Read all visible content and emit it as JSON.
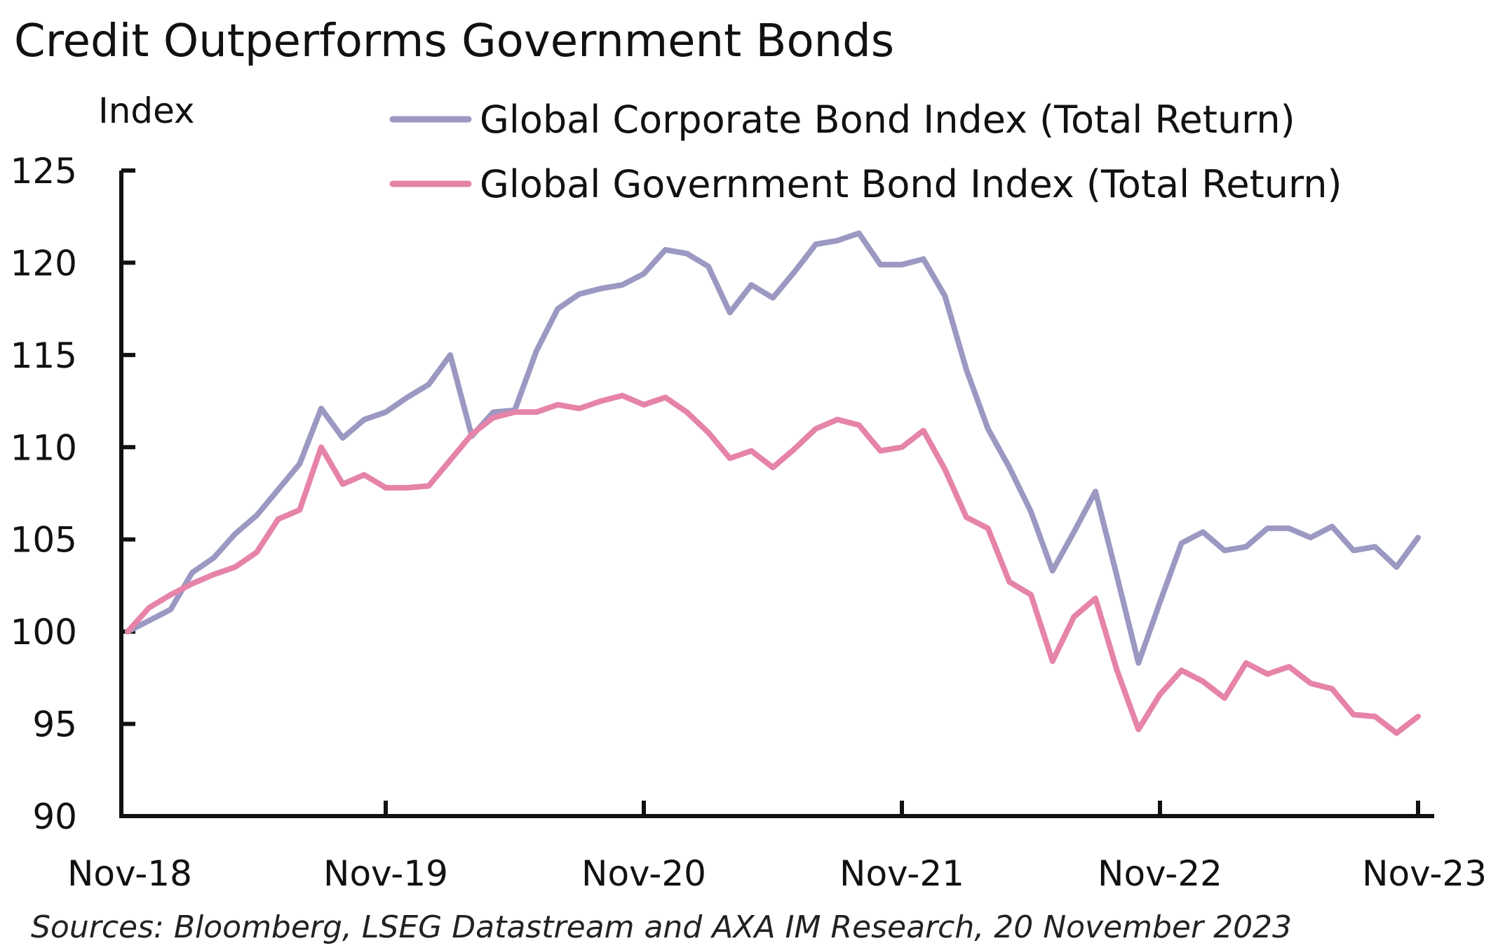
{
  "title": "Credit Outperforms Government Bonds",
  "source": "Sources: Bloomberg, LSEG Datastream and AXA IM Research, 20 November 2023",
  "chart_data": {
    "type": "line",
    "title": "Credit Outperforms Government Bonds",
    "ylabel": "Index",
    "xlabel": "",
    "ylim": [
      90,
      125
    ],
    "yticks": [
      90,
      95,
      100,
      105,
      110,
      115,
      120,
      125
    ],
    "xtick_labels": [
      "Nov-18",
      "Nov-19",
      "Nov-20",
      "Nov-21",
      "Nov-22",
      "Nov-23"
    ],
    "x_start": "Nov-18",
    "x_frequency": "monthly",
    "grid": false,
    "legend_position": "top",
    "series": [
      {
        "name": "Global Corporate Bond Index (Total Return)",
        "color": "#9b99c2",
        "values": [
          100.0,
          100.6,
          101.2,
          103.2,
          104.0,
          105.3,
          106.3,
          107.7,
          109.1,
          112.1,
          110.5,
          111.5,
          111.9,
          112.7,
          113.4,
          115.0,
          110.6,
          111.9,
          112.0,
          115.2,
          117.5,
          118.3,
          118.6,
          118.8,
          119.4,
          120.7,
          120.5,
          119.8,
          117.3,
          118.8,
          118.1,
          119.5,
          121.0,
          121.2,
          121.6,
          119.9,
          119.9,
          120.2,
          118.2,
          114.2,
          111.0,
          108.9,
          106.5,
          103.3,
          105.4,
          107.6,
          103.0,
          98.3,
          101.6,
          104.8,
          105.4,
          104.4,
          104.6,
          105.6,
          105.6,
          105.1,
          105.7,
          104.4,
          104.6,
          103.5,
          105.1
        ],
        "values_note_excluded": ""
      },
      {
        "name": "Global Government Bond Index (Total Return)",
        "color": "#e683a8",
        "values": [
          100.0,
          101.3,
          102.0,
          102.6,
          103.1,
          103.5,
          104.3,
          106.1,
          106.6,
          110.0,
          108.0,
          108.5,
          107.8,
          107.8,
          107.9,
          109.3,
          110.7,
          111.6,
          111.9,
          111.9,
          112.3,
          112.1,
          112.5,
          112.8,
          112.3,
          112.7,
          111.9,
          110.8,
          109.4,
          109.8,
          108.9,
          109.9,
          111.0,
          111.5,
          111.2,
          109.8,
          110.0,
          110.9,
          108.8,
          106.2,
          105.6,
          102.7,
          102.0,
          98.4,
          100.8,
          101.8,
          97.9,
          94.7,
          96.6,
          97.9,
          97.3,
          96.4,
          98.3,
          97.7,
          98.1,
          97.2,
          96.9,
          95.5,
          95.4,
          94.5,
          95.4
        ]
      }
    ]
  }
}
